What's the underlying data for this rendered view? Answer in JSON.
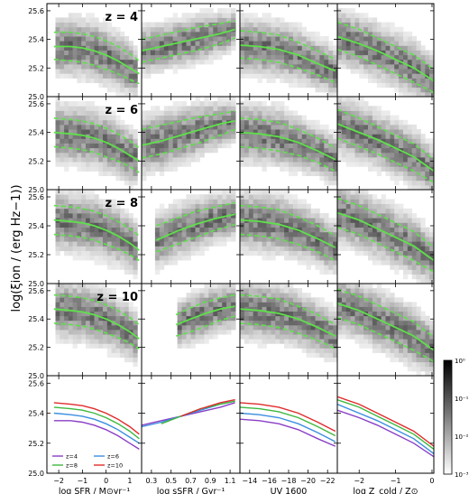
{
  "figure": {
    "ylabel": "log(ξion / (erg Hz−1))",
    "colorbar": {
      "ticks": [
        "10⁰",
        "10⁻¹",
        "10⁻²",
        "10⁻³"
      ]
    }
  },
  "chart_data": {
    "type": "heatmap",
    "title": "",
    "ylim": [
      25.0,
      25.65
    ],
    "yticks": [
      25.0,
      25.2,
      25.4,
      25.6
    ],
    "columns": [
      {
        "xlabel": "log SFR / M⊙yr⁻¹",
        "xlim": [
          -2.5,
          1.5
        ],
        "xticks": [
          -2,
          -1,
          0,
          1
        ],
        "xticklabels": [
          "−2",
          "−1",
          "0",
          "1"
        ]
      },
      {
        "xlabel": "log sSFR / Gyr⁻¹",
        "xlim": [
          0.2,
          1.2
        ],
        "xticks": [
          0.3,
          0.5,
          0.7,
          0.9,
          1.1
        ],
        "xticklabels": [
          "0.3",
          "0.5",
          "0.7",
          "0.9",
          "1.1"
        ]
      },
      {
        "xlabel": "UV 1600",
        "xlim": [
          -13,
          -23
        ],
        "xticks": [
          -14,
          -16,
          -18,
          -20,
          -22
        ],
        "xticklabels": [
          "−14",
          "−16",
          "−18",
          "−20",
          "−22"
        ]
      },
      {
        "xlabel": "log Z_cold / Z⊙",
        "xlim": [
          -2.6,
          0.05
        ],
        "xticks": [
          -2,
          -1,
          0
        ],
        "xticklabels": [
          "−2",
          "−1",
          "0"
        ]
      }
    ],
    "rows": [
      {
        "label": "z = 4",
        "panels": [
          {
            "x": [
              -2.2,
              -1.5,
              -1.0,
              -0.5,
              0.0,
              0.5,
              1.0,
              1.4
            ],
            "median": [
              25.35,
              25.35,
              25.34,
              25.32,
              25.29,
              25.25,
              25.2,
              25.16
            ],
            "p16": [
              25.26,
              25.25,
              25.24,
              25.22,
              25.19,
              25.16,
              25.12,
              25.09
            ],
            "p84": [
              25.45,
              25.45,
              25.44,
              25.42,
              25.39,
              25.35,
              25.3,
              25.25
            ]
          },
          {
            "x": [
              0.2,
              0.4,
              0.6,
              0.8,
              1.0,
              1.15
            ],
            "median": [
              25.32,
              25.35,
              25.38,
              25.41,
              25.44,
              25.47
            ],
            "p16": [
              25.24,
              25.27,
              25.3,
              25.33,
              25.37,
              25.41
            ],
            "p84": [
              25.4,
              25.43,
              25.46,
              25.49,
              25.51,
              25.53
            ]
          },
          {
            "x": [
              -13,
              -15,
              -17,
              -19,
              -21,
              -22.8
            ],
            "median": [
              25.36,
              25.35,
              25.33,
              25.29,
              25.23,
              25.18
            ],
            "p16": [
              25.27,
              25.26,
              25.24,
              25.2,
              25.15,
              25.1
            ],
            "p84": [
              25.46,
              25.45,
              25.43,
              25.38,
              25.32,
              25.26
            ]
          },
          {
            "x": [
              -2.6,
              -2.0,
              -1.5,
              -1.0,
              -0.5,
              0.05
            ],
            "median": [
              25.42,
              25.37,
              25.32,
              25.26,
              25.2,
              25.11
            ],
            "p16": [
              25.33,
              25.28,
              25.22,
              25.16,
              25.1,
              25.03
            ],
            "p84": [
              25.52,
              25.47,
              25.41,
              25.35,
              25.29,
              25.19
            ]
          }
        ]
      },
      {
        "label": "z = 6",
        "panels": [
          {
            "x": [
              -2.2,
              -1.5,
              -1.0,
              -0.5,
              0.0,
              0.5,
              1.0,
              1.4
            ],
            "median": [
              25.4,
              25.39,
              25.38,
              25.36,
              25.33,
              25.29,
              25.24,
              25.2
            ],
            "p16": [
              25.3,
              25.29,
              25.28,
              25.26,
              25.23,
              25.2,
              25.16,
              25.12
            ],
            "p84": [
              25.5,
              25.49,
              25.48,
              25.46,
              25.43,
              25.39,
              25.34,
              25.29
            ]
          },
          {
            "x": [
              0.2,
              0.4,
              0.6,
              0.8,
              1.0,
              1.15
            ],
            "median": [
              25.31,
              25.34,
              25.38,
              25.42,
              25.46,
              25.48
            ],
            "p16": [
              25.22,
              25.25,
              25.29,
              25.33,
              25.38,
              25.42
            ],
            "p84": [
              25.42,
              25.45,
              25.48,
              25.51,
              25.53,
              25.55
            ]
          },
          {
            "x": [
              -13,
              -15,
              -17,
              -19,
              -21,
              -22.8
            ],
            "median": [
              25.4,
              25.39,
              25.37,
              25.33,
              25.27,
              25.21
            ],
            "p16": [
              25.3,
              25.29,
              25.27,
              25.24,
              25.19,
              25.13
            ],
            "p84": [
              25.5,
              25.49,
              25.47,
              25.42,
              25.36,
              25.29
            ]
          },
          {
            "x": [
              -2.6,
              -2.0,
              -1.5,
              -1.0,
              -0.5,
              0.05
            ],
            "median": [
              25.46,
              25.4,
              25.35,
              25.29,
              25.23,
              25.13
            ],
            "p16": [
              25.36,
              25.3,
              25.25,
              25.19,
              25.13,
              25.05
            ],
            "p84": [
              25.56,
              25.5,
              25.44,
              25.38,
              25.32,
              25.21
            ]
          }
        ]
      },
      {
        "label": "z = 8",
        "panels": [
          {
            "x": [
              -2.2,
              -1.5,
              -1.0,
              -0.5,
              0.0,
              0.5,
              1.0,
              1.4
            ],
            "median": [
              25.44,
              25.43,
              25.42,
              25.4,
              25.37,
              25.33,
              25.28,
              25.23
            ],
            "p16": [
              25.34,
              25.33,
              25.32,
              25.3,
              25.27,
              25.24,
              25.2,
              25.16
            ],
            "p84": [
              25.54,
              25.53,
              25.52,
              25.5,
              25.47,
              25.43,
              25.38,
              25.33
            ]
          },
          {
            "x": [
              0.35,
              0.55,
              0.75,
              0.95,
              1.15
            ],
            "median": [
              25.3,
              25.36,
              25.41,
              25.45,
              25.48
            ],
            "p16": [
              25.22,
              25.27,
              25.32,
              25.37,
              25.41
            ],
            "p84": [
              25.4,
              25.45,
              25.5,
              25.53,
              25.56
            ]
          },
          {
            "x": [
              -13,
              -15,
              -17,
              -19,
              -21,
              -22.8
            ],
            "median": [
              25.44,
              25.43,
              25.41,
              25.37,
              25.31,
              25.25
            ],
            "p16": [
              25.34,
              25.33,
              25.31,
              25.27,
              25.22,
              25.16
            ],
            "p84": [
              25.54,
              25.53,
              25.51,
              25.46,
              25.4,
              25.33
            ]
          },
          {
            "x": [
              -2.6,
              -2.0,
              -1.5,
              -1.0,
              -0.5,
              0.05
            ],
            "median": [
              25.49,
              25.44,
              25.38,
              25.32,
              25.26,
              25.16
            ],
            "p16": [
              25.39,
              25.34,
              25.28,
              25.22,
              25.16,
              25.08
            ],
            "p84": [
              25.59,
              25.54,
              25.48,
              25.42,
              25.36,
              25.25
            ]
          }
        ]
      },
      {
        "label": "z = 10",
        "panels": [
          {
            "x": [
              -2.2,
              -1.5,
              -1.0,
              -0.5,
              0.0,
              0.5,
              1.0,
              1.4
            ],
            "median": [
              25.47,
              25.46,
              25.45,
              25.43,
              25.4,
              25.36,
              25.31,
              25.26
            ],
            "p16": [
              25.37,
              25.36,
              25.35,
              25.33,
              25.3,
              25.27,
              25.23,
              25.19
            ],
            "p84": [
              25.57,
              25.56,
              25.55,
              25.53,
              25.5,
              25.46,
              25.41,
              25.36
            ]
          },
          {
            "x": [
              0.55,
              0.7,
              0.85,
              1.0,
              1.15
            ],
            "median": [
              25.36,
              25.4,
              25.44,
              25.47,
              25.49
            ],
            "p16": [
              25.28,
              25.31,
              25.35,
              25.39,
              25.42
            ],
            "p84": [
              25.43,
              25.48,
              25.52,
              25.55,
              25.57
            ]
          },
          {
            "x": [
              -13,
              -15,
              -17,
              -19,
              -21,
              -22.8
            ],
            "median": [
              25.47,
              25.46,
              25.44,
              25.4,
              25.34,
              25.28
            ],
            "p16": [
              25.37,
              25.36,
              25.34,
              25.3,
              25.25,
              25.19
            ],
            "p84": [
              25.57,
              25.56,
              25.54,
              25.49,
              25.43,
              25.36
            ]
          },
          {
            "x": [
              -2.6,
              -2.0,
              -1.5,
              -1.0,
              -0.5,
              0.05
            ],
            "median": [
              25.51,
              25.46,
              25.4,
              25.34,
              25.28,
              25.18
            ],
            "p16": [
              25.41,
              25.36,
              25.3,
              25.24,
              25.18,
              25.1
            ],
            "p84": [
              25.61,
              25.56,
              25.5,
              25.44,
              25.38,
              25.27
            ]
          }
        ]
      }
    ],
    "comparison": {
      "legend_position": "lower-left",
      "series": [
        {
          "name": "z=4",
          "color": "#8a3fc6"
        },
        {
          "name": "z=6",
          "color": "#3b8fe0"
        },
        {
          "name": "z=8",
          "color": "#3fb83f"
        },
        {
          "name": "z=10",
          "color": "#e02c2c"
        }
      ],
      "panels": [
        {
          "x": [
            -2.2,
            -1.5,
            -1.0,
            -0.5,
            0.0,
            0.5,
            1.0,
            1.4
          ],
          "series": [
            [
              25.35,
              25.35,
              25.34,
              25.32,
              25.29,
              25.25,
              25.2,
              25.16
            ],
            [
              25.4,
              25.39,
              25.38,
              25.36,
              25.33,
              25.29,
              25.24,
              25.2
            ],
            [
              25.44,
              25.43,
              25.42,
              25.4,
              25.37,
              25.33,
              25.28,
              25.23
            ],
            [
              25.47,
              25.46,
              25.45,
              25.43,
              25.4,
              25.36,
              25.31,
              25.26
            ]
          ]
        },
        {
          "x": [
            0.2,
            0.4,
            0.6,
            0.8,
            1.0,
            1.15
          ],
          "series": [
            [
              25.32,
              25.35,
              25.38,
              25.41,
              25.44,
              25.47
            ],
            [
              25.31,
              25.34,
              25.38,
              25.42,
              25.46,
              25.48
            ],
            [
              null,
              25.33,
              25.38,
              25.43,
              25.46,
              25.48
            ],
            [
              null,
              null,
              25.38,
              25.43,
              25.47,
              25.49
            ]
          ]
        },
        {
          "x": [
            -13,
            -15,
            -17,
            -19,
            -21,
            -22.8
          ],
          "series": [
            [
              25.36,
              25.35,
              25.33,
              25.29,
              25.23,
              25.18
            ],
            [
              25.4,
              25.39,
              25.37,
              25.33,
              25.27,
              25.21
            ],
            [
              25.44,
              25.43,
              25.41,
              25.37,
              25.31,
              25.25
            ],
            [
              25.47,
              25.46,
              25.44,
              25.4,
              25.34,
              25.28
            ]
          ]
        },
        {
          "x": [
            -2.6,
            -2.0,
            -1.5,
            -1.0,
            -0.5,
            0.05
          ],
          "series": [
            [
              25.42,
              25.37,
              25.32,
              25.26,
              25.2,
              25.11
            ],
            [
              25.46,
              25.4,
              25.35,
              25.29,
              25.23,
              25.13
            ],
            [
              25.49,
              25.44,
              25.38,
              25.32,
              25.26,
              25.16
            ],
            [
              25.51,
              25.46,
              25.4,
              25.34,
              25.28,
              25.18
            ]
          ]
        }
      ]
    },
    "style": {
      "line_color": "#5ee04a",
      "grid": false
    }
  }
}
